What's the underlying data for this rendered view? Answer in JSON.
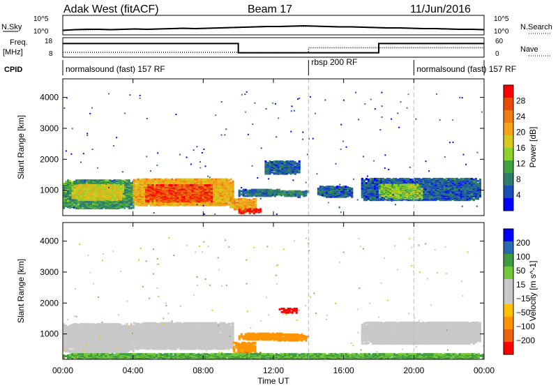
{
  "header": {
    "radar": "Adak West (fitACF)",
    "beam": "Beam 17",
    "date": "11/Jun/2016"
  },
  "chart_data": [
    {
      "type": "line",
      "panel": "noise",
      "ylabel_left": "N.Sky",
      "ylabel_right": "N.Search",
      "left_ticks": [
        "10^5",
        "10^0"
      ],
      "right_ticks": [
        "10^5",
        "10^0"
      ],
      "sky_noise_log10": [
        0.45,
        0.55,
        0.6,
        0.6,
        0.55,
        0.6,
        0.65,
        0.6,
        0.65,
        0.7,
        0.75,
        0.7,
        0.75,
        0.8,
        0.85,
        0.9,
        0.95,
        1.0,
        1.0,
        1.05,
        1.1,
        1.05,
        1.0,
        0.95,
        0.95,
        0.9,
        0.85,
        0.8,
        0.8,
        0.75,
        0.7,
        0.7,
        0.65,
        0.6,
        0.6,
        0.55
      ],
      "search_noise_log10": [
        0.4,
        0.5,
        0.5,
        0.55,
        0.5,
        0.55,
        0.6,
        0.55,
        0.6,
        0.65,
        0.7,
        0.65,
        0.7,
        0.75,
        0.8,
        0.85,
        0.9,
        0.95,
        0.95,
        1.0,
        1.0,
        1.0,
        0.95,
        0.9,
        0.9,
        0.85,
        0.8,
        0.75,
        0.75,
        0.7,
        0.65,
        0.65,
        0.6,
        0.55,
        0.55,
        0.5
      ]
    },
    {
      "type": "line",
      "panel": "frequency",
      "ylabel_left": "Freq.",
      "ylabel_left_unit": "[MHz]",
      "ylabel_right": "Nave",
      "left_ticks": [
        "18",
        "8"
      ],
      "right_ticks": [
        "60",
        "0"
      ],
      "ylim": [
        8,
        18
      ],
      "freq_steps": [
        {
          "start": 0,
          "end": 10,
          "value": 15
        },
        {
          "start": 10,
          "end": 18,
          "value": 10.3
        },
        {
          "start": 18,
          "end": 24,
          "value": 15
        }
      ],
      "nave_steps": [
        {
          "start": 0,
          "end": 10,
          "value": 15
        },
        {
          "start": 10,
          "end": 14,
          "value": 14
        },
        {
          "start": 14,
          "end": 24,
          "value": 29
        }
      ]
    },
    {
      "type": "table",
      "panel": "cpid",
      "label": "CPID",
      "segments": [
        {
          "start": 0,
          "end": 14,
          "text": "normalsound (fast) 157 RF"
        },
        {
          "start": 14,
          "end": 20,
          "text": "rbsp 200 RF"
        },
        {
          "start": 20,
          "end": 24,
          "text": "normalsound (fast) 157 RF"
        }
      ]
    },
    {
      "type": "heatmap",
      "panel": "power",
      "ylabel": "Slant Range [km]",
      "ylim": [
        180,
        4600
      ],
      "yticks": [
        1000,
        2000,
        3000,
        4000
      ],
      "colorbar_label": "Power [dB]",
      "colorbar_ticks": [
        4,
        8,
        12,
        16,
        20,
        24,
        28
      ],
      "colorbar_range": [
        0,
        32
      ],
      "colors": [
        "#0000ff",
        "#1a4fb8",
        "#2e7d6b",
        "#3fa33f",
        "#8fd22c",
        "#d8c81c",
        "#f5a31a",
        "#f07d11",
        "#e84a0a",
        "#ff0000"
      ],
      "patches": [
        {
          "t0": 0.0,
          "t1": 4.0,
          "r0": 380,
          "r1": 1300,
          "p": 10
        },
        {
          "t0": 0.5,
          "t1": 3.5,
          "r0": 650,
          "r1": 1150,
          "p": 17
        },
        {
          "t0": 4.0,
          "t1": 9.7,
          "r0": 480,
          "r1": 1320,
          "p": 20
        },
        {
          "t0": 4.7,
          "t1": 8.5,
          "r0": 600,
          "r1": 1150,
          "p": 27
        },
        {
          "t0": 9.5,
          "t1": 11.0,
          "r0": 350,
          "r1": 700,
          "p": 21
        },
        {
          "t0": 10.0,
          "t1": 11.2,
          "r0": 220,
          "r1": 360,
          "p": 30
        },
        {
          "t0": 10.0,
          "t1": 12.5,
          "r0": 780,
          "r1": 1000,
          "p": 7
        },
        {
          "t0": 11.5,
          "t1": 13.5,
          "r0": 1500,
          "r1": 1900,
          "p": 6
        },
        {
          "t0": 12.0,
          "t1": 14.0,
          "r0": 780,
          "r1": 950,
          "p": 8
        },
        {
          "t0": 14.5,
          "t1": 16.5,
          "r0": 750,
          "r1": 1100,
          "p": 6
        },
        {
          "t0": 17.0,
          "t1": 23.8,
          "r0": 650,
          "r1": 1350,
          "p": 6
        },
        {
          "t0": 18.0,
          "t1": 20.5,
          "r0": 700,
          "r1": 1150,
          "p": 14
        }
      ]
    },
    {
      "type": "heatmap",
      "panel": "velocity",
      "ylabel": "Slant Range [km]",
      "ylim": [
        180,
        4600
      ],
      "yticks": [
        1000,
        2000,
        3000,
        4000
      ],
      "colorbar_label": "Velocity [m s^-1]",
      "colorbar_ticks": [
        200,
        100,
        50,
        15,
        -15,
        -50,
        -100,
        -200
      ],
      "colors": [
        "#ff0000",
        "#f06410",
        "#ff9400",
        "#ffc000",
        "#c8c8c8",
        "#c8c8c8",
        "#74c63a",
        "#3d9c3f",
        "#2b6ab0",
        "#0000ff"
      ],
      "patches": [
        {
          "t0": 0.0,
          "t1": 4.0,
          "r0": 380,
          "r1": 1300,
          "v": 0
        },
        {
          "t0": 4.0,
          "t1": 9.7,
          "r0": 480,
          "r1": 1320,
          "v": 0
        },
        {
          "t0": 9.7,
          "t1": 11.0,
          "r0": 350,
          "r1": 700,
          "v": -45
        },
        {
          "t0": 10.0,
          "t1": 11.2,
          "r0": 220,
          "r1": 360,
          "v": -80
        },
        {
          "t0": 10.0,
          "t1": 12.5,
          "r0": 780,
          "r1": 1000,
          "v": -40
        },
        {
          "t0": 12.0,
          "t1": 14.0,
          "r0": 750,
          "r1": 950,
          "v": -60
        },
        {
          "t0": 12.3,
          "t1": 13.3,
          "r0": 1650,
          "r1": 1800,
          "v": -220
        },
        {
          "t0": 17.0,
          "t1": 23.8,
          "r0": 650,
          "r1": 1350,
          "v": 0
        },
        {
          "t0": 0.0,
          "t1": 24.0,
          "r0": 180,
          "r1": 320,
          "v": 30
        }
      ]
    }
  ],
  "x_axis": {
    "label": "Time UT",
    "ticks": [
      "00:00",
      "04:00",
      "08:00",
      "12:00",
      "16:00",
      "20:00",
      "00:00"
    ],
    "range_hours": [
      0,
      24
    ]
  }
}
